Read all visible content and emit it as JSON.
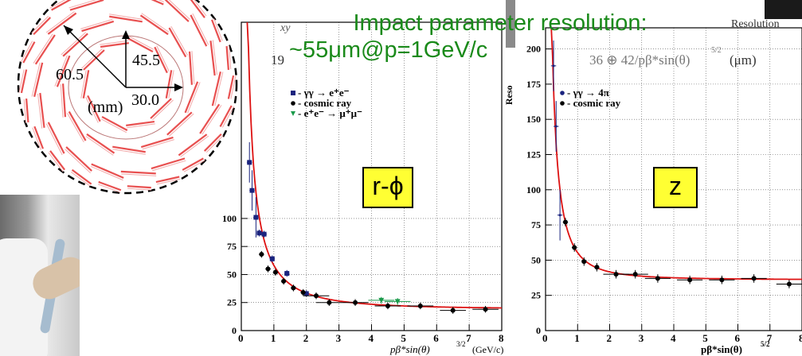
{
  "headline": {
    "line1": "Impact parameter resolution:",
    "line2": "~55μm@p=1GeV/c"
  },
  "diagram": {
    "radius_inner": "30.0",
    "radius_mid": "45.5",
    "radius_outer": "60.5",
    "unit": "(mm)",
    "ladder_color": "#e85050"
  },
  "overlays": {
    "left_formula_fragment": "19",
    "right_formula_fragment": "36 ⊕ 42/pβ*sin(θ)",
    "right_formula_exp": "5/2",
    "right_formula_unit": "(μm)",
    "right_title_fragment": "Resolution",
    "left_title_fragment": "xy",
    "right_ylabel_fragment": "Reso"
  },
  "chart_data": [
    {
      "type": "scatter",
      "panel_label": "r-ϕ",
      "xlabel": "pβ*sin(θ)",
      "xlabel_exp": "3/2",
      "xlabel_unit": "(GeV/c)",
      "xlim": [
        0,
        8
      ],
      "ylim": [
        0,
        275
      ],
      "xticks": [
        "0",
        "1",
        "2",
        "3",
        "4",
        "5",
        "6",
        "7",
        "8"
      ],
      "yticks": [
        "0",
        "25",
        "50",
        "75",
        "100"
      ],
      "grid": true,
      "legend_placement": "top-left",
      "series": [
        {
          "name": "- γγ → e⁺e⁻",
          "color": "#1a237e",
          "marker": "square",
          "points": [
            [
              0.25,
              150
            ],
            [
              0.33,
              125
            ],
            [
              0.45,
              101
            ],
            [
              0.55,
              87
            ],
            [
              0.7,
              86
            ],
            [
              0.95,
              64
            ],
            [
              1.4,
              51
            ],
            [
              2.0,
              33
            ]
          ]
        },
        {
          "name": "- cosmic ray",
          "color": "#000000",
          "marker": "circle",
          "points": [
            [
              0.62,
              68
            ],
            [
              0.82,
              55
            ],
            [
              1.05,
              52
            ],
            [
              1.3,
              44
            ],
            [
              1.6,
              38
            ],
            [
              1.9,
              34
            ],
            [
              2.3,
              31
            ],
            [
              2.7,
              25
            ],
            [
              3.5,
              25
            ],
            [
              4.5,
              22
            ],
            [
              5.5,
              22
            ],
            [
              6.5,
              18
            ],
            [
              7.5,
              19
            ]
          ]
        },
        {
          "name": "- e⁺e⁻ → μ⁺μ⁻",
          "color": "#1a9a4a",
          "marker": "triangle",
          "points": [
            [
              4.3,
              27
            ],
            [
              4.8,
              26
            ]
          ]
        }
      ],
      "fit_color": "#dd1111",
      "fit_A": 19,
      "fit_B": 55
    },
    {
      "type": "scatter",
      "panel_label": "z",
      "xlabel": "pβ*sin(θ)",
      "xlabel_exp": "5/2",
      "xlabel_unit": "(GeV/c)",
      "xlim": [
        0,
        8
      ],
      "ylim": [
        0,
        215
      ],
      "xticks": [
        "0",
        "1",
        "2",
        "3",
        "4",
        "5",
        "6",
        "7",
        "8"
      ],
      "yticks": [
        "0",
        "25",
        "50",
        "75",
        "100",
        "125",
        "150",
        "175",
        "200"
      ],
      "ylabel": "Reso",
      "grid": true,
      "legend_placement": "top-left",
      "series": [
        {
          "name": "- γγ → 4π",
          "color": "#1a237e",
          "marker": "plus",
          "points": [
            [
              0.25,
              188
            ],
            [
              0.33,
              145
            ],
            [
              0.45,
              82
            ]
          ]
        },
        {
          "name": "- cosmic ray",
          "color": "#000000",
          "marker": "circle",
          "points": [
            [
              0.62,
              77
            ],
            [
              0.9,
              59
            ],
            [
              1.2,
              49
            ],
            [
              1.6,
              45
            ],
            [
              2.2,
              40
            ],
            [
              2.8,
              40
            ],
            [
              3.5,
              37
            ],
            [
              4.5,
              36
            ],
            [
              5.5,
              36
            ],
            [
              6.5,
              37
            ],
            [
              7.6,
              33
            ]
          ]
        }
      ],
      "fit_color": "#dd1111",
      "fit_A": 36,
      "fit_B": 42
    }
  ]
}
